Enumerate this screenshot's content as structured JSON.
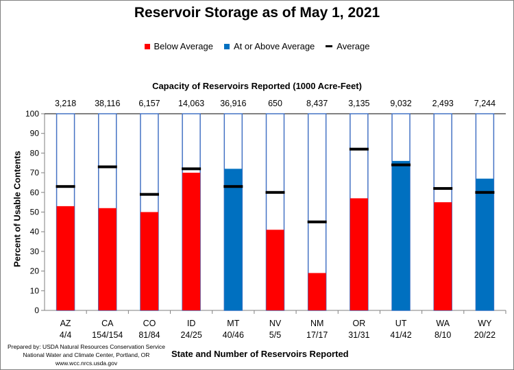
{
  "chart_data": {
    "type": "bar",
    "title": "Reservoir Storage as of May 1, 2021",
    "capacity_title": "Capacity of Reservoirs Reported (1000 Acre-Feet)",
    "xlabel": "State and Number of Reservoirs Reported",
    "ylabel": "Percent of Usable Contents",
    "ylim": [
      0,
      100
    ],
    "yticks": [
      "0",
      "10",
      "20",
      "30",
      "40",
      "50",
      "60",
      "70",
      "80",
      "90",
      "100"
    ],
    "legend": {
      "below": "Below Average",
      "above": "At or Above Average",
      "average": "Average"
    },
    "categories": [
      "AZ",
      "CA",
      "CO",
      "ID",
      "MT",
      "NV",
      "NM",
      "OR",
      "UT",
      "WA",
      "WY"
    ],
    "reservoirs_reported": [
      "4/4",
      "154/154",
      "81/84",
      "24/25",
      "40/46",
      "5/5",
      "17/17",
      "31/31",
      "41/42",
      "8/10",
      "20/22"
    ],
    "capacities": [
      "3,218",
      "38,116",
      "6,157",
      "14,063",
      "36,916",
      "650",
      "8,437",
      "3,135",
      "9,032",
      "2,493",
      "7,244"
    ],
    "values": [
      53,
      52,
      50,
      70,
      72,
      41,
      19,
      57,
      76,
      55,
      67
    ],
    "averages": [
      63,
      73,
      59,
      72,
      63,
      60,
      45,
      82,
      74,
      62,
      60
    ],
    "status": [
      "below",
      "below",
      "below",
      "below",
      "above",
      "below",
      "below",
      "below",
      "above",
      "below",
      "above"
    ]
  },
  "colors": {
    "below": "#ff0000",
    "above": "#0070c0",
    "average": "#000000",
    "outline": "#4472c4",
    "axis": "#7f7f7f",
    "gridline": "#000000"
  },
  "footer": {
    "line1": "Prepared by: USDA Natural Resources Conservation Service",
    "line2": "National Water and Climate Center, Portland, OR",
    "line3": "www.wcc.nrcs.usda.gov"
  }
}
